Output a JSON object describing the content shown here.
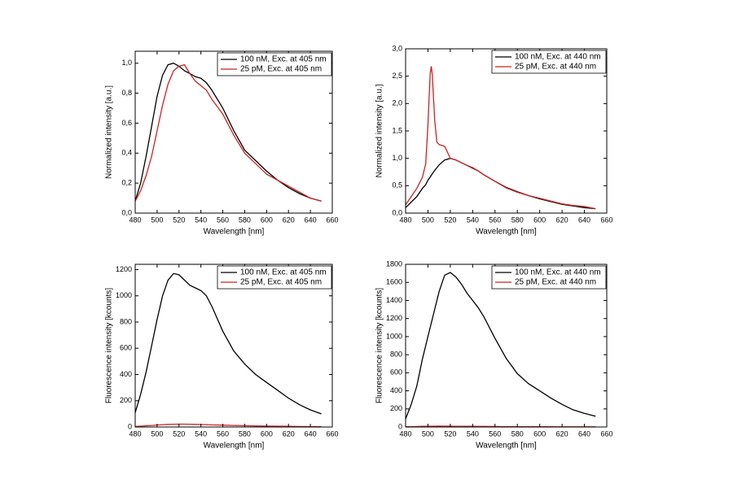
{
  "chart_data": [
    {
      "type": "line",
      "x_label": "Wavelength [nm]",
      "y_label": "Normalized intensity [a.u.]",
      "x": [
        480,
        485,
        490,
        495,
        500,
        505,
        510,
        515,
        520,
        525,
        530,
        535,
        540,
        545,
        550,
        560,
        570,
        580,
        590,
        600,
        610,
        620,
        630,
        640,
        650
      ],
      "series": [
        {
          "name": "100 nM, Exc. at 405 nm",
          "color": "#000000",
          "values": [
            0.08,
            0.2,
            0.38,
            0.58,
            0.78,
            0.92,
            0.99,
            1.0,
            0.98,
            0.95,
            0.93,
            0.91,
            0.9,
            0.87,
            0.82,
            0.7,
            0.55,
            0.42,
            0.35,
            0.28,
            0.22,
            0.17,
            0.13,
            0.1,
            0.08
          ]
        },
        {
          "name": "25 pM, Exc. at 405 nm",
          "color": "#cc2222",
          "values": [
            0.08,
            0.15,
            0.25,
            0.38,
            0.55,
            0.72,
            0.86,
            0.95,
            0.98,
            0.99,
            0.93,
            0.88,
            0.85,
            0.82,
            0.76,
            0.66,
            0.52,
            0.4,
            0.33,
            0.26,
            0.22,
            0.18,
            0.14,
            0.1,
            0.08
          ]
        }
      ],
      "xlim": [
        480,
        660
      ],
      "xticks": [
        480,
        500,
        520,
        540,
        560,
        580,
        600,
        620,
        640,
        660
      ],
      "ylim": [
        0,
        1.08
      ],
      "yticks": [
        {
          "value": 0,
          "label": "0,0"
        },
        {
          "value": 0.2,
          "label": "0,2"
        },
        {
          "value": 0.4,
          "label": "0,4"
        },
        {
          "value": 0.6,
          "label": "0,6"
        },
        {
          "value": 0.8,
          "label": "0,8"
        },
        {
          "value": 1.0,
          "label": "1,0"
        }
      ]
    },
    {
      "type": "line",
      "x_label": "Wavelength [nm]",
      "y_label": "Normalized intensity [a.u.]",
      "x": [
        480,
        485,
        490,
        495,
        498,
        500,
        502,
        503,
        504,
        506,
        508,
        510,
        515,
        520,
        525,
        530,
        535,
        540,
        545,
        550,
        560,
        570,
        580,
        590,
        600,
        610,
        620,
        630,
        640,
        650
      ],
      "series": [
        {
          "name": "100 nM, Exc. at 440 nm",
          "color": "#000000",
          "values": [
            0.1,
            0.2,
            0.3,
            0.45,
            0.52,
            0.6,
            0.66,
            0.69,
            0.72,
            0.78,
            0.83,
            0.88,
            0.97,
            1.0,
            0.97,
            0.92,
            0.87,
            0.82,
            0.77,
            0.7,
            0.58,
            0.47,
            0.39,
            0.32,
            0.26,
            0.21,
            0.16,
            0.13,
            0.1,
            0.08
          ]
        },
        {
          "name": "25 pM, Exc. at 440 nm",
          "color": "#cc2222",
          "values": [
            0.15,
            0.3,
            0.45,
            0.65,
            0.9,
            1.6,
            2.55,
            2.68,
            2.5,
            1.7,
            1.3,
            1.25,
            1.22,
            1.0,
            0.97,
            0.92,
            0.87,
            0.83,
            0.77,
            0.7,
            0.58,
            0.46,
            0.38,
            0.32,
            0.27,
            0.22,
            0.17,
            0.14,
            0.12,
            0.08
          ]
        }
      ],
      "xlim": [
        480,
        660
      ],
      "xticks": [
        480,
        500,
        520,
        540,
        560,
        580,
        600,
        620,
        640,
        660
      ],
      "ylim": [
        0,
        3
      ],
      "yticks": [
        {
          "value": 0,
          "label": "0,0"
        },
        {
          "value": 0.5,
          "label": "0,5"
        },
        {
          "value": 1.0,
          "label": "1,0"
        },
        {
          "value": 1.5,
          "label": "1,5"
        },
        {
          "value": 2.0,
          "label": "2,0"
        },
        {
          "value": 2.5,
          "label": "2,5"
        },
        {
          "value": 3.0,
          "label": "3,0"
        }
      ]
    },
    {
      "type": "line",
      "x_label": "Wavelength [nm]",
      "y_label": "Fluorescence intensity [kcounts]",
      "x": [
        480,
        485,
        490,
        495,
        500,
        505,
        510,
        515,
        520,
        525,
        530,
        535,
        540,
        545,
        550,
        560,
        570,
        580,
        590,
        600,
        610,
        620,
        630,
        640,
        650
      ],
      "series": [
        {
          "name": "100 nM, Exc. at 405 nm",
          "color": "#000000",
          "values": [
            110,
            250,
            420,
            620,
            820,
            1000,
            1120,
            1170,
            1160,
            1120,
            1080,
            1060,
            1040,
            1000,
            920,
            730,
            580,
            480,
            400,
            340,
            280,
            220,
            170,
            130,
            100
          ]
        },
        {
          "name": "25 pM, Exc. at 405 nm",
          "color": "#cc2222",
          "values": [
            4,
            6,
            9,
            12,
            15,
            18,
            20,
            21,
            22,
            22,
            21,
            20,
            19,
            18,
            16,
            14,
            12,
            10,
            8,
            7,
            6,
            5,
            4,
            3,
            3
          ]
        }
      ],
      "xlim": [
        480,
        660
      ],
      "xticks": [
        480,
        500,
        520,
        540,
        560,
        580,
        600,
        620,
        640,
        660
      ],
      "ylim": [
        0,
        1240
      ],
      "yticks": [
        0,
        200,
        400,
        600,
        800,
        1000,
        1200
      ]
    },
    {
      "type": "line",
      "x_label": "Wavelength [nm]",
      "y_label": "Fluorescence intensity [kcounts]",
      "x": [
        480,
        485,
        490,
        495,
        500,
        505,
        510,
        515,
        520,
        525,
        530,
        535,
        540,
        545,
        550,
        560,
        570,
        580,
        590,
        600,
        610,
        620,
        630,
        640,
        650
      ],
      "series": [
        {
          "name": "100 nM, Exc. at 440 nm",
          "color": "#000000",
          "values": [
            90,
            250,
            450,
            750,
            1000,
            1250,
            1500,
            1680,
            1710,
            1660,
            1580,
            1480,
            1400,
            1320,
            1220,
            980,
            760,
            590,
            480,
            400,
            320,
            250,
            190,
            150,
            120
          ]
        },
        {
          "name": "25 pM, Exc. at 440 nm",
          "color": "#cc2222",
          "values": [
            3,
            4,
            5,
            7,
            8,
            9,
            10,
            9,
            9,
            8,
            8,
            7,
            7,
            6,
            6,
            5,
            4,
            4,
            3,
            3,
            3,
            2,
            2,
            2,
            2
          ]
        }
      ],
      "xlim": [
        480,
        660
      ],
      "xticks": [
        480,
        500,
        520,
        540,
        560,
        580,
        600,
        620,
        640,
        660
      ],
      "ylim": [
        0,
        1800
      ],
      "yticks": [
        0,
        200,
        400,
        600,
        800,
        1000,
        1200,
        1400,
        1600,
        1800
      ]
    }
  ]
}
